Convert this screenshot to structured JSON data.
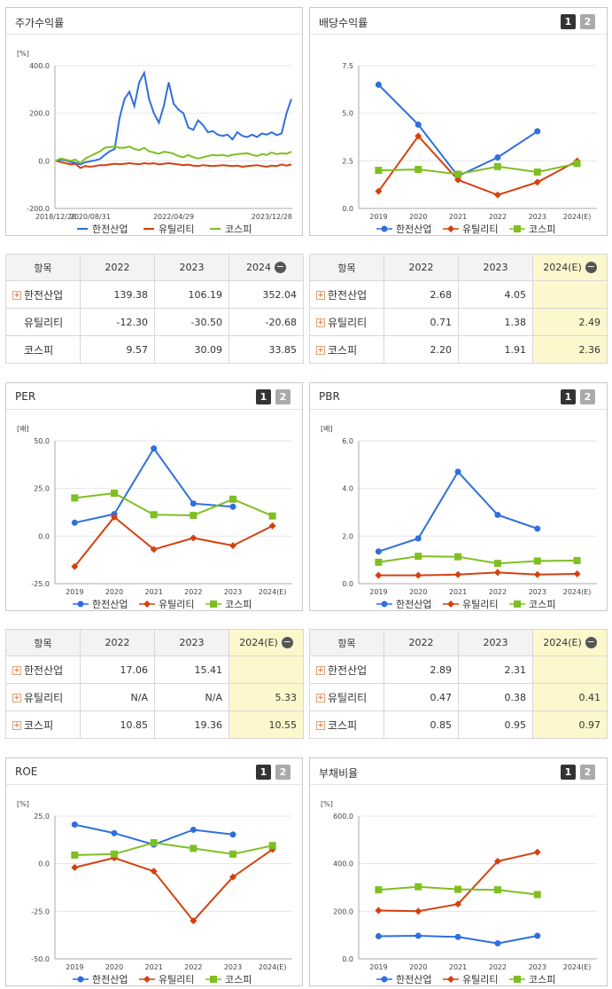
{
  "colors": {
    "series1": "#2f6fdd",
    "series2": "#d4410f",
    "series3": "#7fbf22"
  },
  "panels": [
    {
      "title": "주가수익률",
      "buttons": [],
      "chart_data": {
        "type": "line",
        "unit": "[%]",
        "x": [
          "2018/12/28",
          "2019/03/29",
          "2019/06/28",
          "2019/09/30",
          "2019/12/30",
          "2020/03/31",
          "2020/06/30",
          "2020/08/31",
          "2020/09/30",
          "2020/11/30",
          "2021/01/29",
          "2021/03/31",
          "2021/04/30",
          "2021/05/31",
          "2021/06/30",
          "2021/07/30",
          "2021/08/31",
          "2021/09/30",
          "2021/10/29",
          "2021/11/30",
          "2021/12/30",
          "2022/01/28",
          "2022/02/28",
          "2022/03/31",
          "2022/04/29",
          "2022/05/31",
          "2022/06/30",
          "2022/07/29",
          "2022/08/31",
          "2022/09/30",
          "2022/10/31",
          "2022/11/30",
          "2022/12/29",
          "2023/01/31",
          "2023/02/28",
          "2023/03/31",
          "2023/04/28",
          "2023/05/31",
          "2023/06/30",
          "2023/07/31",
          "2023/08/31",
          "2023/09/27",
          "2023/10/31",
          "2023/11/30",
          "2023/12/28",
          "2024/01/31",
          "2024/02/29",
          "2024/03/29",
          "2024/04/30"
        ],
        "xticks": [
          "2018/12/28",
          "2020/08/31",
          "2022/04/29",
          "2023/12/28"
        ],
        "ylim": [
          -200,
          400
        ],
        "yticks": [
          "-200.0",
          "0.0",
          "200.0",
          "400.0"
        ],
        "series": [
          {
            "name": "한전산업",
            "values": [
              0,
              5,
              2,
              -5,
              -8,
              -15,
              -6,
              -2,
              2,
              8,
              25,
              40,
              50,
              180,
              260,
              290,
              230,
              330,
              370,
              260,
              200,
              160,
              230,
              330,
              240,
              215,
              200,
              140,
              130,
              170,
              150,
              120,
              125,
              110,
              105,
              110,
              90,
              120,
              105,
              100,
              110,
              100,
              115,
              110,
              120,
              108,
              115,
              200,
              260
            ]
          },
          {
            "name": "유틸리티",
            "values": [
              0,
              -5,
              -10,
              -15,
              -12,
              -30,
              -22,
              -25,
              -22,
              -18,
              -18,
              -15,
              -12,
              -14,
              -12,
              -10,
              -12,
              -14,
              -10,
              -12,
              -10,
              -15,
              -12,
              -10,
              -12,
              -15,
              -18,
              -16,
              -20,
              -22,
              -18,
              -20,
              -22,
              -20,
              -18,
              -20,
              -22,
              -20,
              -25,
              -22,
              -20,
              -18,
              -22,
              -25,
              -20,
              -22,
              -15,
              -20,
              -15
            ]
          },
          {
            "name": "코스피",
            "values": [
              0,
              10,
              5,
              0,
              5,
              -10,
              10,
              20,
              30,
              40,
              55,
              58,
              60,
              55,
              55,
              60,
              50,
              45,
              55,
              40,
              35,
              30,
              38,
              35,
              30,
              20,
              15,
              25,
              15,
              10,
              15,
              20,
              25,
              22,
              25,
              20,
              25,
              28,
              30,
              32,
              25,
              20,
              28,
              25,
              35,
              28,
              32,
              30,
              38
            ]
          }
        ]
      }
    },
    {
      "title": "배당수익률",
      "buttons": [
        "1",
        "2"
      ],
      "chart_data": {
        "type": "line",
        "unit": "",
        "x": [
          "2019",
          "2020",
          "2021",
          "2022",
          "2023",
          "2024(E)"
        ],
        "ylim": [
          0,
          7.5
        ],
        "yticks": [
          "0.0",
          "2.5",
          "5.0",
          "7.5"
        ],
        "series": [
          {
            "name": "한전산업",
            "values": [
              6.5,
              4.4,
              1.7,
              2.68,
              4.05,
              null
            ]
          },
          {
            "name": "유틸리티",
            "values": [
              0.9,
              3.8,
              1.5,
              0.71,
              1.38,
              2.49
            ]
          },
          {
            "name": "코스피",
            "values": [
              2.0,
              2.05,
              1.8,
              2.2,
              1.91,
              2.36
            ]
          }
        ]
      },
      "table": {
        "headers": [
          "항목",
          "2022",
          "2023",
          "2024(E)"
        ],
        "rows": [
          {
            "label": "한전산업",
            "plus": true,
            "values": [
              "2.68",
              "4.05",
              ""
            ]
          },
          {
            "label": "유틸리티",
            "plus": true,
            "values": [
              "0.71",
              "1.38",
              "2.49"
            ]
          },
          {
            "label": "코스피",
            "plus": true,
            "values": [
              "2.20",
              "1.91",
              "2.36"
            ]
          }
        ]
      }
    },
    {
      "title": "PER",
      "buttons": [
        "1",
        "2"
      ],
      "chart_data": {
        "type": "line",
        "unit": "[배]",
        "x": [
          "2019",
          "2020",
          "2021",
          "2022",
          "2023",
          "2024(E)"
        ],
        "ylim": [
          -25,
          50
        ],
        "yticks": [
          "-25.0",
          "0.0",
          "25.0",
          "50.0"
        ],
        "series": [
          {
            "name": "한전산업",
            "values": [
              7.0,
              11.5,
              46.0,
              17.06,
              15.41,
              null
            ]
          },
          {
            "name": "유틸리티",
            "values": [
              -16.0,
              10.0,
              -7.0,
              -1.0,
              -5.0,
              5.33
            ]
          },
          {
            "name": "코스피",
            "values": [
              20.0,
              22.5,
              11.2,
              10.85,
              19.36,
              10.55
            ]
          }
        ]
      },
      "table": {
        "headers": [
          "항목",
          "2022",
          "2023",
          "2024(E)"
        ],
        "rows": [
          {
            "label": "한전산업",
            "plus": true,
            "values": [
              "17.06",
              "15.41",
              ""
            ]
          },
          {
            "label": "유틸리티",
            "plus": true,
            "values": [
              "N/A",
              "N/A",
              "5.33"
            ]
          },
          {
            "label": "코스피",
            "plus": true,
            "values": [
              "10.85",
              "19.36",
              "10.55"
            ]
          }
        ]
      }
    },
    {
      "title": "PBR",
      "buttons": [
        "1",
        "2"
      ],
      "chart_data": {
        "type": "line",
        "unit": "[배]",
        "x": [
          "2019",
          "2020",
          "2021",
          "2022",
          "2023",
          "2024(E)"
        ],
        "ylim": [
          0,
          6
        ],
        "yticks": [
          "0.0",
          "2.0",
          "4.0",
          "6.0"
        ],
        "series": [
          {
            "name": "한전산업",
            "values": [
              1.35,
              1.9,
              4.7,
              2.89,
              2.31,
              null
            ]
          },
          {
            "name": "유틸리티",
            "values": [
              0.35,
              0.35,
              0.38,
              0.47,
              0.38,
              0.41
            ]
          },
          {
            "name": "코스피",
            "values": [
              0.9,
              1.15,
              1.13,
              0.85,
              0.95,
              0.97
            ]
          }
        ]
      },
      "table": {
        "headers": [
          "항목",
          "2022",
          "2023",
          "2024(E)"
        ],
        "rows": [
          {
            "label": "한전산업",
            "plus": true,
            "values": [
              "2.89",
              "2.31",
              ""
            ]
          },
          {
            "label": "유틸리티",
            "plus": true,
            "values": [
              "0.47",
              "0.38",
              "0.41"
            ]
          },
          {
            "label": "코스피",
            "plus": true,
            "values": [
              "0.85",
              "0.95",
              "0.97"
            ]
          }
        ]
      }
    },
    {
      "title": "ROE",
      "buttons": [
        "1",
        "2"
      ],
      "chart_data": {
        "type": "line",
        "unit": "[%]",
        "x": [
          "2019",
          "2020",
          "2021",
          "2022",
          "2023",
          "2024(E)"
        ],
        "ylim": [
          -50,
          25
        ],
        "yticks": [
          "-50.0",
          "-25.0",
          "0.0",
          "25.0"
        ],
        "series": [
          {
            "name": "한전산업",
            "values": [
              20.5,
              16.0,
              10.0,
              17.8,
              15.3,
              null
            ]
          },
          {
            "name": "유틸리티",
            "values": [
              -2.0,
              3.0,
              -4.0,
              -30.0,
              -7.0,
              7.5
            ]
          },
          {
            "name": "코스피",
            "values": [
              4.5,
              5.0,
              11.0,
              8.0,
              5.0,
              9.5
            ]
          }
        ]
      }
    },
    {
      "title": "부채비율",
      "buttons": [
        "1",
        "2"
      ],
      "chart_data": {
        "type": "line",
        "unit": "[%]",
        "x": [
          "2019",
          "2020",
          "2021",
          "2022",
          "2023",
          "2024(E)"
        ],
        "ylim": [
          0,
          600
        ],
        "yticks": [
          "0.0",
          "200.0",
          "400.0",
          "600.0"
        ],
        "series": [
          {
            "name": "한전산업",
            "values": [
              95,
              97,
              92,
              65,
              97,
              null
            ]
          },
          {
            "name": "유틸리티",
            "values": [
              203,
              200,
              230,
              410,
              448,
              null
            ]
          },
          {
            "name": "코스피",
            "values": [
              290,
              303,
              292,
              290,
              270,
              null
            ]
          }
        ]
      }
    }
  ],
  "stock_table": {
    "headers": [
      "항목",
      "2022",
      "2023",
      "2024"
    ],
    "rows": [
      {
        "label": "한전산업",
        "plus": true,
        "values": [
          "139.38",
          "106.19",
          "352.04"
        ]
      },
      {
        "label": "유틸리티",
        "plus": false,
        "values": [
          "-12.30",
          "-30.50",
          "-20.68"
        ]
      },
      {
        "label": "코스피",
        "plus": false,
        "values": [
          "9.57",
          "30.09",
          "33.85"
        ]
      }
    ]
  },
  "minus_symbol": "−",
  "plus_symbol": "+"
}
